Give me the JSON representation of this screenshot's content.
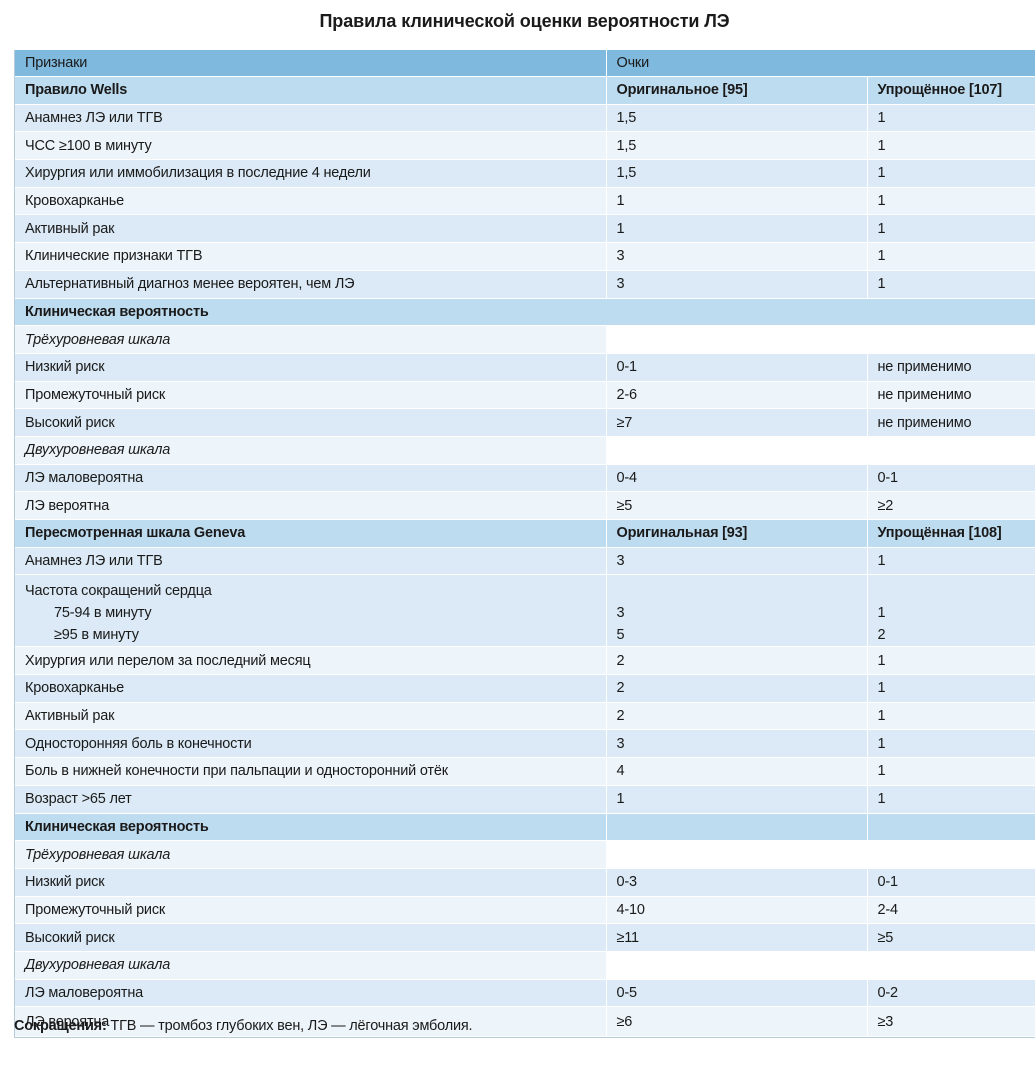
{
  "title": "Правила клинической оценки вероятности ЛЭ",
  "header": {
    "col1": "Признаки",
    "col2": "Очки"
  },
  "wells": {
    "title": "Правило Wells",
    "col2": "Оригинальное [95]",
    "col3": "Упрощённое [107]",
    "items": [
      {
        "label": "Анамнез ЛЭ или ТГВ",
        "orig": "1,5",
        "simp": "1"
      },
      {
        "label": "ЧСС ≥100 в минуту",
        "orig": "1,5",
        "simp": "1"
      },
      {
        "label": "Хирургия или иммобилизация в последние 4 недели",
        "orig": "1,5",
        "simp": "1"
      },
      {
        "label": "Кровохарканье",
        "orig": "1",
        "simp": "1"
      },
      {
        "label": "Активный рак",
        "orig": "1",
        "simp": "1"
      },
      {
        "label": "Клинические признаки ТГВ",
        "orig": "3",
        "simp": "1"
      },
      {
        "label": "Альтернативный диагноз менее вероятен, чем ЛЭ",
        "orig": "3",
        "simp": "1"
      }
    ],
    "prob_title": "Клиническая вероятность",
    "three_level": "Трёхуровневая шкала",
    "three": [
      {
        "label": "Низкий риск",
        "orig": "0-1",
        "simp": "не применимо"
      },
      {
        "label": "Промежуточный риск",
        "orig": "2-6",
        "simp": "не применимо"
      },
      {
        "label": "Высокий риск",
        "orig": "≥7",
        "simp": "не применимо"
      }
    ],
    "two_level": "Двухуровневая шкала",
    "two": [
      {
        "label": "ЛЭ маловероятна",
        "orig": "0-4",
        "simp": "0-1"
      },
      {
        "label": "ЛЭ вероятна",
        "orig": "≥5",
        "simp": "≥2"
      }
    ]
  },
  "geneva": {
    "title": "Пересмотренная шкала Geneva",
    "col2": "Оригинальная [93]",
    "col3": "Упрощённая [108]",
    "item_hx": {
      "label": "Анамнез ЛЭ или ТГВ",
      "orig": "3",
      "simp": "1"
    },
    "hr": {
      "label": "Частота сокращений сердца",
      "sub1": {
        "label": "75-94 в минуту",
        "orig": "3",
        "simp": "1"
      },
      "sub2": {
        "label": "≥95 в минуту",
        "orig": "5",
        "simp": "2"
      }
    },
    "items": [
      {
        "label": "Хирургия или перелом за последний месяц",
        "orig": "2",
        "simp": "1"
      },
      {
        "label": "Кровохарканье",
        "orig": "2",
        "simp": "1"
      },
      {
        "label": "Активный рак",
        "orig": "2",
        "simp": "1"
      },
      {
        "label": "Односторонняя боль в конечности",
        "orig": "3",
        "simp": "1"
      },
      {
        "label": "Боль в нижней конечности при пальпации и односторонний отёк",
        "orig": "4",
        "simp": "1"
      },
      {
        "label": "Возраст >65 лет",
        "orig": "1",
        "simp": "1"
      }
    ],
    "prob_title": "Клиническая вероятность",
    "three_level": "Трёхуровневая шкала",
    "three": [
      {
        "label": "Низкий риск",
        "orig": "0-3",
        "simp": "0-1"
      },
      {
        "label": "Промежуточный риск",
        "orig": "4-10",
        "simp": "2-4"
      },
      {
        "label": "Высокий риск",
        "orig": "≥11",
        "simp": "≥5"
      }
    ],
    "two_level": "Двухуровневая шкала",
    "two": [
      {
        "label": "ЛЭ маловероятна",
        "orig": "0-5",
        "simp": "0-2"
      },
      {
        "label": "ЛЭ вероятна",
        "orig": "≥6",
        "simp": "≥3"
      }
    ]
  },
  "footnote": {
    "label": "Сокращения:",
    "text": " ТГВ — тромбоз глубоких вен, ЛЭ — лёгочная эмболия."
  }
}
